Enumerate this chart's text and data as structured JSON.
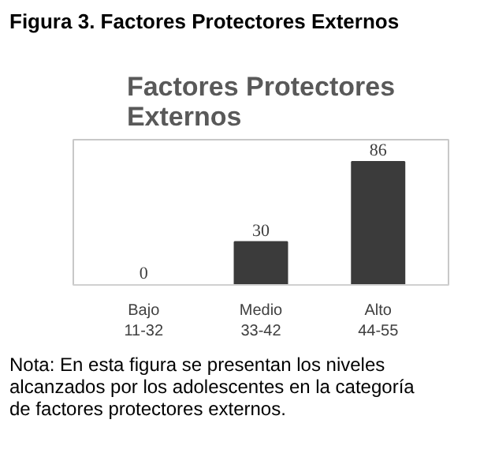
{
  "chart_data": {
    "type": "bar",
    "title": "Factores Protectores Externos",
    "subtitle": "Figura 3. Factores Protectores Externos",
    "categories": [
      "Bajo\n11-32",
      "Medio\n33-42",
      "Alto\n44-55"
    ],
    "values": [
      0,
      30,
      86
    ],
    "color": "#3b3b3b",
    "data_labels": true,
    "annotations": [
      "Nota: En esta figura se presentan los niveles alcanzados por los adolescentes en la categoría de factores protectores externos."
    ]
  }
}
